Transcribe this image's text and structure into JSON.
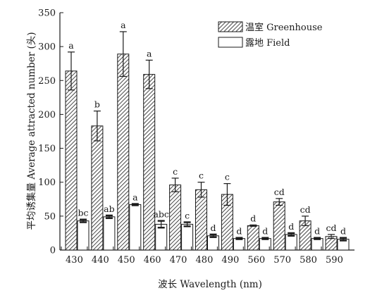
{
  "chart_data": {
    "type": "bar",
    "xlabel": "波长 Wavelength (nm)",
    "ylabel": "平均诱集量 Average attracted number (头)",
    "ylim": [
      0,
      350
    ],
    "yticks": [
      "0",
      "50",
      "100",
      "150",
      "200",
      "250",
      "300",
      "350"
    ],
    "grid": false,
    "legend_position": "top-right",
    "categories": [
      "430",
      "440",
      "450",
      "460",
      "470",
      "480",
      "490",
      "560",
      "570",
      "580",
      "590"
    ],
    "series": [
      {
        "name": "温室 Greenhouse",
        "pattern": "hatched",
        "values": [
          264,
          183,
          289,
          259,
          96,
          89,
          82,
          36,
          71,
          43,
          20
        ],
        "errors": [
          28,
          22,
          33,
          21,
          10,
          11,
          16,
          1,
          5,
          7,
          3
        ],
        "labels": [
          "a",
          "b",
          "a",
          "a",
          "c",
          "c",
          "c",
          "d",
          "cd",
          "cd",
          "cd"
        ]
      },
      {
        "name": "露地 Field",
        "pattern": "white",
        "values": [
          43,
          49,
          67,
          38,
          38,
          21,
          17,
          17,
          23,
          17,
          16
        ],
        "errors": [
          2,
          2,
          1,
          5,
          3,
          2,
          1,
          1,
          2,
          1,
          2
        ],
        "labels": [
          "bc",
          "ab",
          "a",
          "abc",
          "c",
          "d",
          "d",
          "d",
          "d",
          "d",
          "d"
        ]
      }
    ]
  },
  "colors": {
    "ink": "#1a1a1a",
    "fill_field": "#ffffff"
  }
}
